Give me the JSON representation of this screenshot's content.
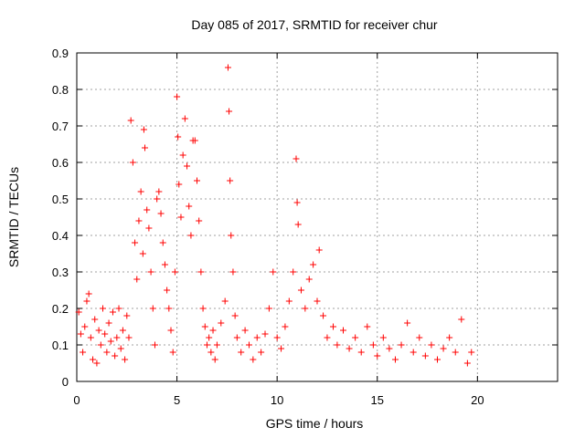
{
  "chart_data": {
    "type": "scatter",
    "title": "Day 085 of 2017, SRMTID for receiver chur",
    "xlabel": "GPS time / hours",
    "ylabel": "SRMTID / TECUs",
    "xlim": [
      0,
      24
    ],
    "ylim": [
      0,
      0.9
    ],
    "xticks": [
      "0",
      "5",
      "10",
      "15",
      "20"
    ],
    "yticks": [
      "0",
      "0.1",
      "0.2",
      "0.3",
      "0.4",
      "0.5",
      "0.6",
      "0.7",
      "0.8",
      "0.9"
    ],
    "grid": true,
    "marker": "+",
    "color": "#ff0000",
    "series": [
      {
        "name": "SRMTID",
        "points": [
          [
            0.1,
            0.19
          ],
          [
            0.2,
            0.13
          ],
          [
            0.3,
            0.08
          ],
          [
            0.4,
            0.15
          ],
          [
            0.5,
            0.22
          ],
          [
            0.6,
            0.24
          ],
          [
            0.7,
            0.12
          ],
          [
            0.8,
            0.06
          ],
          [
            0.9,
            0.17
          ],
          [
            1.0,
            0.05
          ],
          [
            1.1,
            0.14
          ],
          [
            1.2,
            0.1
          ],
          [
            1.3,
            0.2
          ],
          [
            1.4,
            0.13
          ],
          [
            1.5,
            0.08
          ],
          [
            1.6,
            0.16
          ],
          [
            1.7,
            0.11
          ],
          [
            1.8,
            0.19
          ],
          [
            1.9,
            0.07
          ],
          [
            2.0,
            0.12
          ],
          [
            2.1,
            0.2
          ],
          [
            2.2,
            0.09
          ],
          [
            2.3,
            0.14
          ],
          [
            2.4,
            0.06
          ],
          [
            2.5,
            0.18
          ],
          [
            2.6,
            0.12
          ],
          [
            2.7,
            0.715
          ],
          [
            2.8,
            0.6
          ],
          [
            2.9,
            0.38
          ],
          [
            3.0,
            0.28
          ],
          [
            3.1,
            0.44
          ],
          [
            3.2,
            0.52
          ],
          [
            3.3,
            0.35
          ],
          [
            3.35,
            0.69
          ],
          [
            3.4,
            0.64
          ],
          [
            3.5,
            0.47
          ],
          [
            3.6,
            0.42
          ],
          [
            3.7,
            0.3
          ],
          [
            3.8,
            0.2
          ],
          [
            3.9,
            0.1
          ],
          [
            4.0,
            0.5
          ],
          [
            4.1,
            0.52
          ],
          [
            4.2,
            0.46
          ],
          [
            4.3,
            0.38
          ],
          [
            4.4,
            0.32
          ],
          [
            4.5,
            0.25
          ],
          [
            4.6,
            0.2
          ],
          [
            4.7,
            0.14
          ],
          [
            4.8,
            0.08
          ],
          [
            4.9,
            0.3
          ],
          [
            5.0,
            0.78
          ],
          [
            5.05,
            0.67
          ],
          [
            5.1,
            0.54
          ],
          [
            5.2,
            0.45
          ],
          [
            5.3,
            0.62
          ],
          [
            5.4,
            0.72
          ],
          [
            5.5,
            0.59
          ],
          [
            5.6,
            0.48
          ],
          [
            5.7,
            0.4
          ],
          [
            5.8,
            0.66
          ],
          [
            5.9,
            0.66
          ],
          [
            6.0,
            0.55
          ],
          [
            6.1,
            0.44
          ],
          [
            6.2,
            0.3
          ],
          [
            6.3,
            0.2
          ],
          [
            6.4,
            0.15
          ],
          [
            6.5,
            0.1
          ],
          [
            6.6,
            0.12
          ],
          [
            6.7,
            0.08
          ],
          [
            6.8,
            0.14
          ],
          [
            6.9,
            0.06
          ],
          [
            7.0,
            0.1
          ],
          [
            7.2,
            0.16
          ],
          [
            7.4,
            0.22
          ],
          [
            7.55,
            0.86
          ],
          [
            7.6,
            0.74
          ],
          [
            7.65,
            0.55
          ],
          [
            7.7,
            0.4
          ],
          [
            7.8,
            0.3
          ],
          [
            7.9,
            0.18
          ],
          [
            8.0,
            0.12
          ],
          [
            8.2,
            0.08
          ],
          [
            8.4,
            0.14
          ],
          [
            8.6,
            0.1
          ],
          [
            8.8,
            0.06
          ],
          [
            9.0,
            0.12
          ],
          [
            9.2,
            0.08
          ],
          [
            9.4,
            0.13
          ],
          [
            9.6,
            0.2
          ],
          [
            9.8,
            0.3
          ],
          [
            10.0,
            0.12
          ],
          [
            10.2,
            0.09
          ],
          [
            10.4,
            0.15
          ],
          [
            10.6,
            0.22
          ],
          [
            10.8,
            0.3
          ],
          [
            10.95,
            0.61
          ],
          [
            11.0,
            0.49
          ],
          [
            11.05,
            0.43
          ],
          [
            11.2,
            0.25
          ],
          [
            11.4,
            0.2
          ],
          [
            11.6,
            0.28
          ],
          [
            11.8,
            0.32
          ],
          [
            12.0,
            0.22
          ],
          [
            12.1,
            0.36
          ],
          [
            12.3,
            0.18
          ],
          [
            12.5,
            0.12
          ],
          [
            12.8,
            0.15
          ],
          [
            13.0,
            0.1
          ],
          [
            13.3,
            0.14
          ],
          [
            13.6,
            0.09
          ],
          [
            13.9,
            0.12
          ],
          [
            14.2,
            0.08
          ],
          [
            14.5,
            0.15
          ],
          [
            14.8,
            0.1
          ],
          [
            15.0,
            0.07
          ],
          [
            15.3,
            0.12
          ],
          [
            15.6,
            0.09
          ],
          [
            15.9,
            0.06
          ],
          [
            16.2,
            0.1
          ],
          [
            16.5,
            0.16
          ],
          [
            16.8,
            0.08
          ],
          [
            17.1,
            0.12
          ],
          [
            17.4,
            0.07
          ],
          [
            17.7,
            0.1
          ],
          [
            18.0,
            0.06
          ],
          [
            18.3,
            0.09
          ],
          [
            18.6,
            0.12
          ],
          [
            18.9,
            0.08
          ],
          [
            19.2,
            0.17
          ],
          [
            19.5,
            0.05
          ],
          [
            19.7,
            0.08
          ]
        ]
      }
    ]
  }
}
